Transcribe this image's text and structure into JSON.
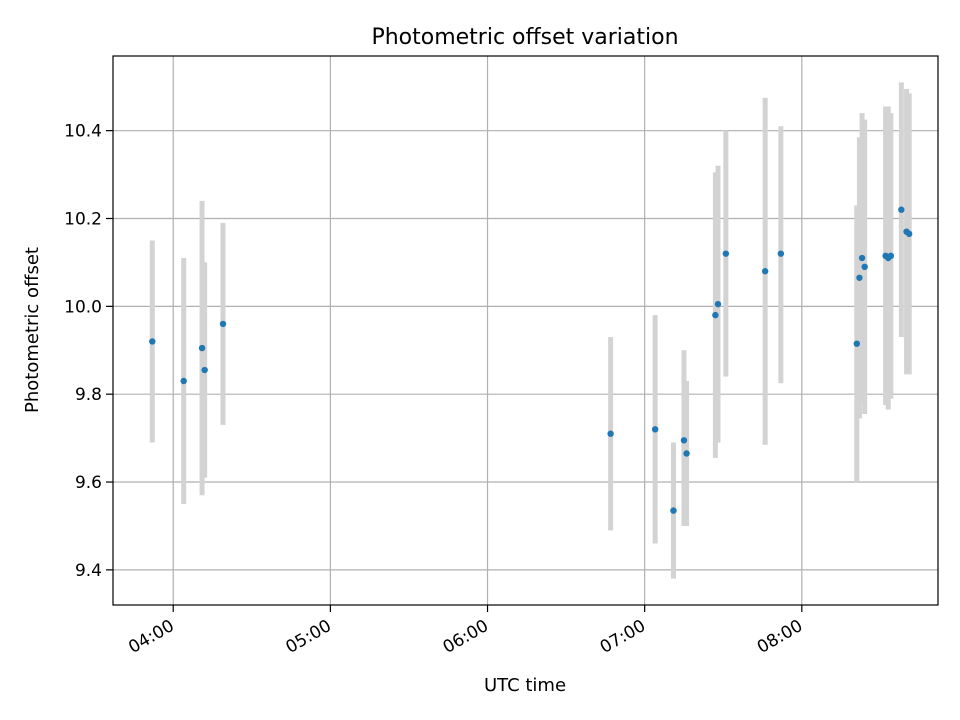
{
  "chart_data": {
    "type": "scatter",
    "title": "Photometric offset variation",
    "xlabel": "UTC time",
    "ylabel": "Photometric offset",
    "x_unit": "time of day (HH:MM)",
    "xlim": [
      "03:37",
      "08:52"
    ],
    "ylim": [
      9.32,
      10.57
    ],
    "x_ticks": [
      "04:00",
      "05:00",
      "06:00",
      "07:00",
      "08:00"
    ],
    "y_ticks": [
      "9.4",
      "9.6",
      "9.8",
      "10.0",
      "10.2",
      "10.4"
    ],
    "grid": true,
    "colors": {
      "point": "#1f77b4",
      "errorbar": "#d3d3d3",
      "grid": "#b0b0b0"
    },
    "points": [
      {
        "x": "03:52",
        "y": 9.92,
        "ylow": 9.69,
        "yhigh": 10.15
      },
      {
        "x": "04:04",
        "y": 9.83,
        "ylow": 9.55,
        "yhigh": 10.11
      },
      {
        "x": "04:11",
        "y": 9.905,
        "ylow": 9.57,
        "yhigh": 10.24
      },
      {
        "x": "04:12",
        "y": 9.855,
        "ylow": 9.61,
        "yhigh": 10.1
      },
      {
        "x": "04:19",
        "y": 9.96,
        "ylow": 9.73,
        "yhigh": 10.19
      },
      {
        "x": "06:47",
        "y": 9.71,
        "ylow": 9.49,
        "yhigh": 9.93
      },
      {
        "x": "07:04",
        "y": 9.72,
        "ylow": 9.46,
        "yhigh": 9.98
      },
      {
        "x": "07:11",
        "y": 9.535,
        "ylow": 9.38,
        "yhigh": 9.69
      },
      {
        "x": "07:15",
        "y": 9.695,
        "ylow": 9.5,
        "yhigh": 9.9
      },
      {
        "x": "07:16",
        "y": 9.665,
        "ylow": 9.5,
        "yhigh": 9.83
      },
      {
        "x": "07:27",
        "y": 9.98,
        "ylow": 9.655,
        "yhigh": 10.305
      },
      {
        "x": "07:28",
        "y": 10.005,
        "ylow": 9.69,
        "yhigh": 10.32
      },
      {
        "x": "07:31",
        "y": 10.12,
        "ylow": 9.84,
        "yhigh": 10.4
      },
      {
        "x": "07:46",
        "y": 10.08,
        "ylow": 9.685,
        "yhigh": 10.475
      },
      {
        "x": "07:52",
        "y": 10.12,
        "ylow": 9.825,
        "yhigh": 10.41
      },
      {
        "x": "08:21",
        "y": 9.915,
        "ylow": 9.6,
        "yhigh": 10.23
      },
      {
        "x": "08:22",
        "y": 10.065,
        "ylow": 9.745,
        "yhigh": 10.385
      },
      {
        "x": "08:23",
        "y": 10.11,
        "ylow": 9.78,
        "yhigh": 10.44
      },
      {
        "x": "08:24",
        "y": 10.09,
        "ylow": 9.755,
        "yhigh": 10.425
      },
      {
        "x": "08:32",
        "y": 10.115,
        "ylow": 9.775,
        "yhigh": 10.455
      },
      {
        "x": "08:33",
        "y": 10.11,
        "ylow": 9.765,
        "yhigh": 10.455
      },
      {
        "x": "08:34",
        "y": 10.115,
        "ylow": 9.79,
        "yhigh": 10.44
      },
      {
        "x": "08:38",
        "y": 10.22,
        "ylow": 9.93,
        "yhigh": 10.51
      },
      {
        "x": "08:40",
        "y": 10.17,
        "ylow": 9.845,
        "yhigh": 10.495
      },
      {
        "x": "08:41",
        "y": 10.165,
        "ylow": 9.845,
        "yhigh": 10.485
      }
    ]
  }
}
